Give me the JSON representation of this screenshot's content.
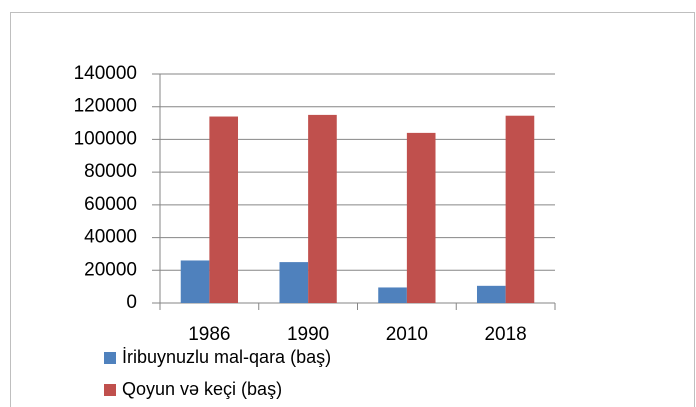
{
  "chart_data": {
    "type": "bar",
    "categories": [
      "1986",
      "1990",
      "2010",
      "2018"
    ],
    "series": [
      {
        "name": "İribuynuzlu mal-qara (baş)",
        "color": "#4f81bd",
        "values": [
          26000,
          25000,
          9500,
          10500
        ]
      },
      {
        "name": "Qoyun və keçi (baş)",
        "color": "#c0504d",
        "values": [
          114000,
          115000,
          104000,
          114500
        ]
      }
    ],
    "ylim": [
      0,
      140000
    ],
    "yticks": [
      0,
      20000,
      40000,
      60000,
      80000,
      100000,
      120000,
      140000
    ],
    "grid": true,
    "legend": "bottom"
  }
}
